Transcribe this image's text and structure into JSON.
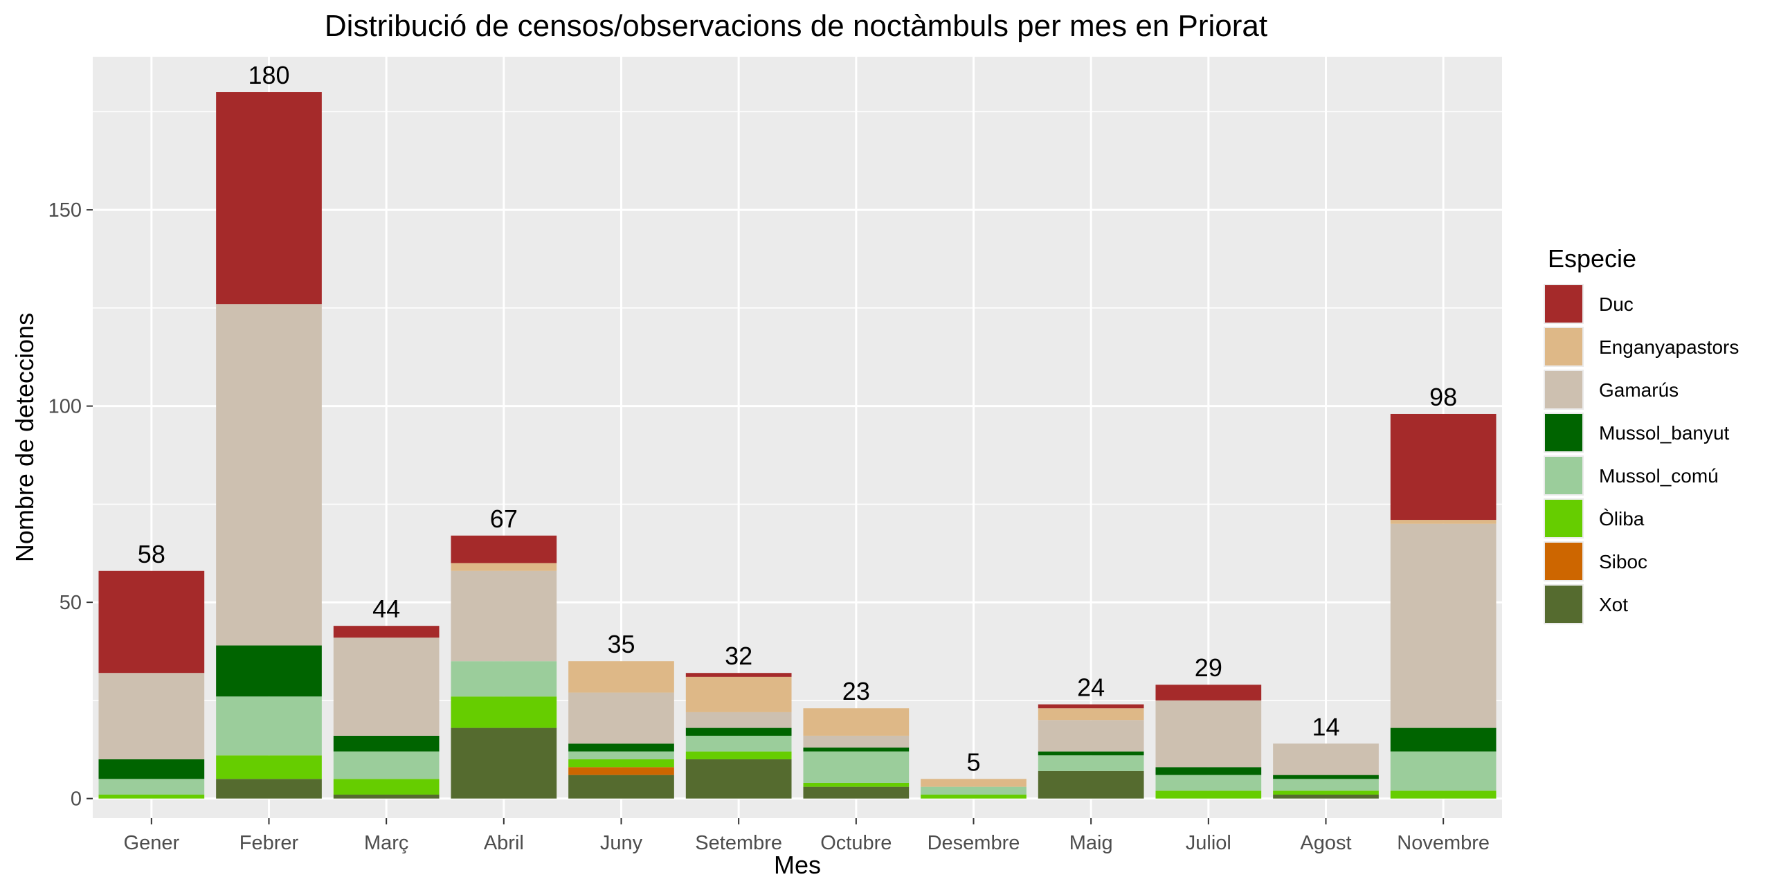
{
  "chart_data": {
    "type": "bar",
    "stacked": true,
    "title": "Distribució de censos/observacions de noctàmbuls per mes en Priorat",
    "xlabel": "Mes",
    "ylabel": "Nombre de deteccions",
    "ylim": [
      -5,
      189
    ],
    "yticks": [
      0,
      50,
      100,
      150
    ],
    "grid": true,
    "legend_title": "Especie",
    "legend_position": "right",
    "categories": [
      "Gener",
      "Febrer",
      "Març",
      "Abril",
      "Juny",
      "Setembre",
      "Octubre",
      "Desembre",
      "Maig",
      "Juliol",
      "Agost",
      "Novembre"
    ],
    "totals": [
      58,
      180,
      44,
      67,
      35,
      32,
      23,
      5,
      24,
      29,
      14,
      98
    ],
    "series": [
      {
        "name": "Duc",
        "color": "#a52a2a",
        "values": [
          26,
          54,
          3,
          7,
          0,
          1,
          0,
          0,
          1,
          4,
          0,
          27
        ]
      },
      {
        "name": "Enganyapastors",
        "color": "#deb887",
        "values": [
          0,
          0,
          0,
          2,
          8,
          9,
          7,
          2,
          3,
          0,
          0,
          1
        ]
      },
      {
        "name": "Gamarús",
        "color": "#cdc0b0",
        "values": [
          22,
          87,
          25,
          23,
          13,
          4,
          3,
          0,
          8,
          17,
          8,
          52
        ]
      },
      {
        "name": "Mussol_banyut",
        "color": "#006400",
        "values": [
          5,
          13,
          4,
          0,
          2,
          2,
          1,
          0,
          1,
          2,
          1,
          6
        ]
      },
      {
        "name": "Mussol_comú",
        "color": "#9bcd9b",
        "values": [
          4,
          15,
          7,
          9,
          2,
          4,
          8,
          2,
          4,
          4,
          3,
          10
        ]
      },
      {
        "name": "Òliba",
        "color": "#66cd00",
        "values": [
          1,
          6,
          4,
          8,
          2,
          2,
          1,
          1,
          0,
          2,
          1,
          2
        ]
      },
      {
        "name": "Siboc",
        "color": "#cd6600",
        "values": [
          0,
          0,
          0,
          0,
          2,
          0,
          0,
          0,
          0,
          0,
          0,
          0
        ]
      },
      {
        "name": "Xot",
        "color": "#556b2f",
        "values": [
          0,
          5,
          1,
          18,
          6,
          10,
          3,
          0,
          7,
          0,
          1,
          0
        ]
      }
    ]
  },
  "style": {
    "panel_background": "#ebebeb",
    "grid_color": "#ffffff",
    "tick_color": "#333333"
  }
}
